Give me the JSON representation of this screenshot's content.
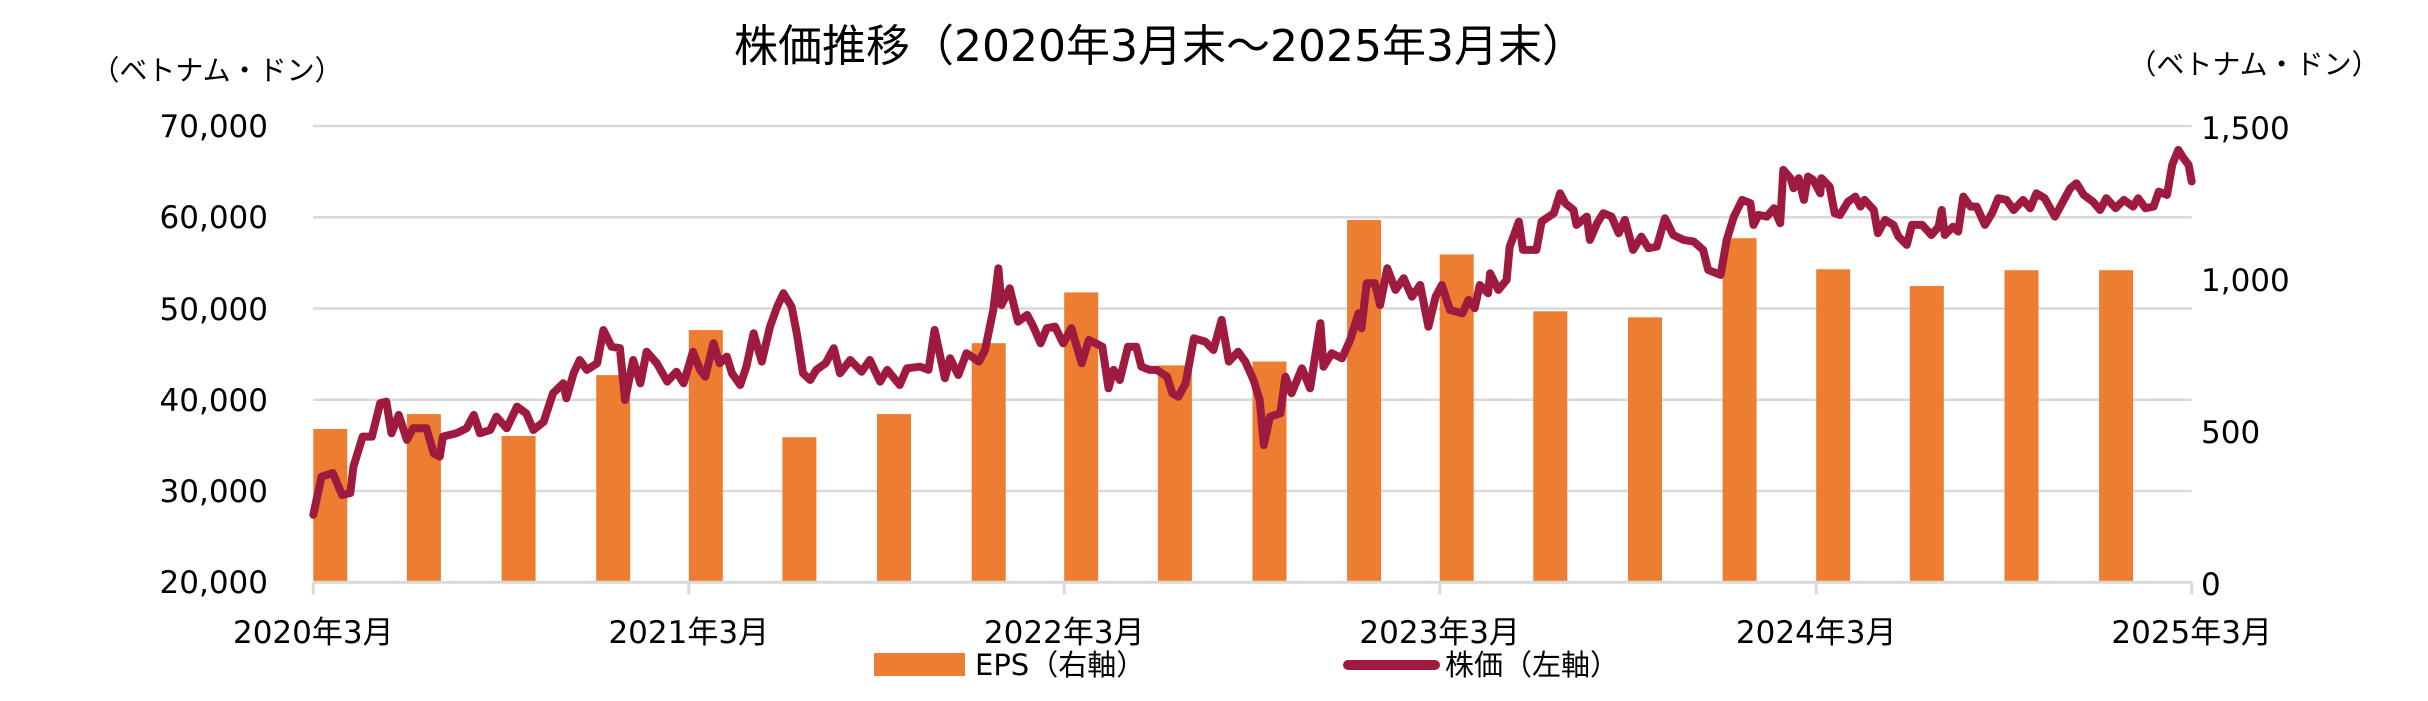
{
  "chart_data": {
    "type": "bar",
    "combo": "bar + line, dual axis",
    "title": "株価推移（2020年3月末～2025年3月末）",
    "xlabel": "",
    "ylabel": "（ベトナム・ドン）",
    "y2label": "（ベトナム・ドン）",
    "x_axis_type": "date",
    "xlim": [
      "2020-03-31",
      "2025-03-31"
    ],
    "xticks": [
      "2020-03-31",
      "2021-03-31",
      "2022-03-31",
      "2023-03-31",
      "2024-03-31",
      "2025-03-31"
    ],
    "xtick_labels": [
      "2020年3月",
      "2021年3月",
      "2022年3月",
      "2023年3月",
      "2024年3月",
      "2025年3月"
    ],
    "ylim": [
      20000,
      70000
    ],
    "yticks": [
      70000,
      60000,
      50000,
      40000,
      30000,
      20000
    ],
    "ytick_labels": [
      "70,000",
      "60,000",
      "50,000",
      "40,000",
      "30,000",
      "20,000"
    ],
    "y2lim": [
      0,
      1500
    ],
    "y2ticks": [
      1500,
      1000,
      500,
      0
    ],
    "y2tick_labels": [
      "1,500",
      "1,000",
      "500",
      "0"
    ],
    "grid": true,
    "legend": {
      "position": "bottom"
    },
    "series": [
      {
        "name": "EPS（右軸）",
        "type": "bar",
        "axis": "right",
        "color": "#ED7D31",
        "x": [
          "2020-03-31",
          "2020-06-30",
          "2020-09-30",
          "2020-12-31",
          "2021-03-31",
          "2021-06-30",
          "2021-09-30",
          "2021-12-31",
          "2022-03-31",
          "2022-06-30",
          "2022-09-30",
          "2022-12-31",
          "2023-03-31",
          "2023-06-30",
          "2023-09-30",
          "2023-12-31",
          "2024-03-31",
          "2024-06-30",
          "2024-09-30",
          "2024-12-31"
        ],
        "values": [
          504,
          553,
          481,
          681,
          829,
          477,
          553,
          786,
          953,
          713,
          726,
          1191,
          1078,
          891,
          871,
          1131,
          1029,
          974,
          1026,
          1026
        ]
      },
      {
        "name": "株価（左軸）",
        "type": "line",
        "axis": "left",
        "color": "#9E1B3F",
        "x": [
          "2020-03-31",
          "2020-04-08",
          "2020-04-19",
          "2020-04-28",
          "2020-05-06",
          "2020-05-09",
          "2020-05-18",
          "2020-05-27",
          "2020-06-04",
          "2020-06-10",
          "2020-06-15",
          "2020-06-22",
          "2020-06-30",
          "2020-07-06",
          "2020-07-19",
          "2020-07-26",
          "2020-08-01",
          "2020-08-04",
          "2020-08-17",
          "2020-08-27",
          "2020-09-03",
          "2020-09-09",
          "2020-09-19",
          "2020-09-25",
          "2020-10-05",
          "2020-10-15",
          "2020-10-24",
          "2020-10-31",
          "2020-11-10",
          "2020-11-19",
          "2020-11-29",
          "2020-12-02",
          "2020-12-09",
          "2020-12-15",
          "2020-12-22",
          "2021-01-01",
          "2021-01-07",
          "2021-01-15",
          "2021-01-23",
          "2021-01-28",
          "2021-02-05",
          "2021-02-12",
          "2021-02-18",
          "2021-02-28",
          "2021-03-10",
          "2021-03-19",
          "2021-03-26",
          "2021-04-04",
          "2021-04-11",
          "2021-04-16",
          "2021-04-24",
          "2021-04-30",
          "2021-05-07",
          "2021-05-12",
          "2021-05-20",
          "2021-05-26",
          "2021-06-02",
          "2021-06-10",
          "2021-06-18",
          "2021-06-25",
          "2021-07-01",
          "2021-07-09",
          "2021-07-14",
          "2021-07-17",
          "2021-07-20",
          "2021-07-27",
          "2021-08-02",
          "2021-08-11",
          "2021-08-19",
          "2021-08-25",
          "2021-09-04",
          "2021-09-15",
          "2021-09-23",
          "2021-10-03",
          "2021-10-10",
          "2021-10-22",
          "2021-10-29",
          "2021-11-11",
          "2021-11-19",
          "2021-11-25",
          "2021-12-05",
          "2021-12-10",
          "2021-12-18",
          "2021-12-26",
          "2022-01-07",
          "2022-01-13",
          "2022-01-21",
          "2022-01-26",
          "2022-01-29",
          "2022-02-06",
          "2022-02-14",
          "2022-02-23",
          "2022-03-01",
          "2022-03-08",
          "2022-03-14",
          "2022-03-22",
          "2022-03-30",
          "2022-04-07",
          "2022-04-17",
          "2022-04-24",
          "2022-05-07",
          "2022-05-13",
          "2022-05-18",
          "2022-05-24",
          "2022-06-01",
          "2022-06-09",
          "2022-06-14",
          "2022-06-22",
          "2022-06-29",
          "2022-07-09",
          "2022-07-14",
          "2022-07-20",
          "2022-07-27",
          "2022-08-04",
          "2022-08-15",
          "2022-08-23",
          "2022-08-31",
          "2022-09-07",
          "2022-09-16",
          "2022-09-23",
          "2022-10-01",
          "2022-10-07",
          "2022-10-11",
          "2022-10-17",
          "2022-10-27",
          "2022-11-01",
          "2022-11-07",
          "2022-11-17",
          "2022-11-25",
          "2022-12-05",
          "2022-12-08",
          "2022-12-16",
          "2022-12-26",
          "2023-01-03",
          "2023-01-11",
          "2023-01-14",
          "2023-01-19",
          "2023-01-27",
          "2023-02-01",
          "2023-02-08",
          "2023-02-16",
          "2023-02-24",
          "2023-03-04",
          "2023-03-12",
          "2023-03-20",
          "2023-03-27",
          "2023-04-02",
          "2023-04-10",
          "2023-04-22",
          "2023-04-28",
          "2023-05-04",
          "2023-05-09",
          "2023-05-17",
          "2023-05-19",
          "2023-05-27",
          "2023-06-04",
          "2023-06-07",
          "2023-06-16",
          "2023-06-20",
          "2023-07-03",
          "2023-07-08",
          "2023-07-20",
          "2023-07-26",
          "2023-07-31",
          "2023-08-08",
          "2023-08-11",
          "2023-08-21",
          "2023-08-24",
          "2023-08-31",
          "2023-09-06",
          "2023-09-14",
          "2023-09-21",
          "2023-09-27",
          "2023-10-05",
          "2023-10-13",
          "2023-10-20",
          "2023-10-28",
          "2023-11-05",
          "2023-11-13",
          "2023-11-23",
          "2023-12-03",
          "2023-12-12",
          "2023-12-17",
          "2023-12-29",
          "2024-01-04",
          "2024-01-11",
          "2024-01-19",
          "2024-01-27",
          "2024-01-30",
          "2024-02-04",
          "2024-02-12",
          "2024-02-19",
          "2024-02-25",
          "2024-02-28",
          "2024-03-06",
          "2024-03-09",
          "2024-03-14",
          "2024-03-19",
          "2024-03-23",
          "2024-03-28",
          "2024-04-04",
          "2024-04-05",
          "2024-04-13",
          "2024-04-18",
          "2024-04-23",
          "2024-05-01",
          "2024-05-08",
          "2024-05-13",
          "2024-05-17",
          "2024-05-26",
          "2024-05-30",
          "2024-06-06",
          "2024-06-14",
          "2024-06-19",
          "2024-06-27",
          "2024-07-02",
          "2024-07-12",
          "2024-07-21",
          "2024-07-28",
          "2024-07-31",
          "2024-08-03",
          "2024-08-11",
          "2024-08-16",
          "2024-08-21",
          "2024-08-28",
          "2024-09-03",
          "2024-09-11",
          "2024-09-18",
          "2024-09-24",
          "2024-10-02",
          "2024-10-09",
          "2024-10-18",
          "2024-10-25",
          "2024-10-31",
          "2024-11-08",
          "2024-11-18",
          "2024-11-25",
          "2024-12-03",
          "2024-12-09",
          "2024-12-16",
          "2024-12-25",
          "2025-01-01",
          "2025-01-07",
          "2025-01-16",
          "2025-01-24",
          "2025-02-02",
          "2025-02-07",
          "2025-02-14",
          "2025-02-22",
          "2025-02-27",
          "2025-03-07",
          "2025-03-12",
          "2025-03-18",
          "2025-03-23",
          "2025-03-28",
          "2025-03-31"
        ],
        "values": [
          27400,
          31570,
          31980,
          29570,
          29790,
          32670,
          35960,
          35960,
          39620,
          39800,
          36330,
          38340,
          35600,
          36880,
          36880,
          34140,
          33770,
          35960,
          36330,
          36880,
          38340,
          36330,
          36690,
          38150,
          36880,
          39250,
          38520,
          36690,
          37600,
          40710,
          41810,
          40160,
          42900,
          44360,
          43270,
          44000,
          47650,
          45820,
          45650,
          39980,
          44360,
          41810,
          45270,
          44000,
          41990,
          43080,
          41810,
          45270,
          43270,
          42530,
          46190,
          44000,
          44730,
          42900,
          41620,
          43630,
          47290,
          44180,
          48010,
          50200,
          51670,
          50200,
          47290,
          45100,
          42900,
          42170,
          43270,
          44000,
          45650,
          42900,
          44360,
          43080,
          44360,
          41990,
          43270,
          41620,
          43450,
          43630,
          43270,
          47650,
          42360,
          44550,
          42720,
          45100,
          44180,
          45460,
          49840,
          54410,
          50390,
          52220,
          48560,
          49300,
          48010,
          46190,
          47840,
          48010,
          46190,
          47840,
          44000,
          46560,
          45820,
          41260,
          43270,
          42170,
          45820,
          45820,
          43630,
          43270,
          43270,
          42530,
          40710,
          40340,
          41810,
          46740,
          46370,
          45460,
          48750,
          44180,
          45270,
          44180,
          42170,
          39980,
          35050,
          38150,
          38520,
          42530,
          40710,
          43450,
          41260,
          48390,
          43630,
          45100,
          44550,
          46560,
          49480,
          47840,
          52770,
          52770,
          50390,
          54410,
          52040,
          53320,
          51300,
          52580,
          48010,
          51300,
          52580,
          49840,
          49480,
          50940,
          50030,
          52580,
          51670,
          53860,
          52040,
          53130,
          56780,
          59520,
          56420,
          56420,
          59520,
          60440,
          62630,
          61540,
          60800,
          59160,
          60070,
          57520,
          59350,
          60440,
          60070,
          58250,
          59710,
          56420,
          57880,
          56610,
          56780,
          59890,
          58060,
          57520,
          57330,
          56420,
          54230,
          53680,
          57520,
          60070,
          61900,
          61540,
          59160,
          60260,
          60070,
          60990,
          59350,
          65190,
          64280,
          63180,
          64280,
          61900,
          64450,
          64090,
          62630,
          64280,
          63360,
          60440,
          60260,
          61720,
          62260,
          61170,
          61900,
          60800,
          58250,
          59710,
          59160,
          57880,
          56970,
          59160,
          59160,
          58060,
          58970,
          60800,
          58060,
          58970,
          58430,
          62260,
          61170,
          61170,
          59160,
          60440,
          62090,
          61900,
          60800,
          61900,
          60990,
          62630,
          62090,
          60070,
          61540,
          63180,
          63730,
          62450,
          61720,
          60800,
          62090,
          60990,
          61900,
          61170,
          62090,
          60990,
          61170,
          62810,
          62450,
          65740,
          67380,
          66470,
          65740,
          63920
        ]
      }
    ]
  }
}
